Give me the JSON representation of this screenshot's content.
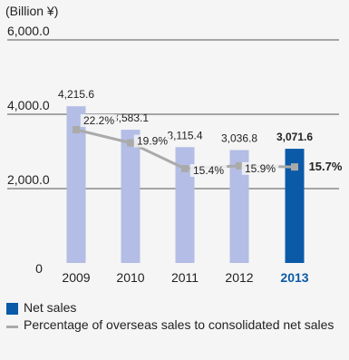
{
  "chart_data": {
    "type": "bar",
    "unit_label": "(Billion ¥)",
    "categories": [
      "2009",
      "2010",
      "2011",
      "2012",
      "2013"
    ],
    "highlight_category": "2013",
    "y_ticks": [
      "6,000.0",
      "4,000.0",
      "2,000.0",
      "0"
    ],
    "ylim": [
      0,
      6000
    ],
    "series": [
      {
        "name": "Net sales",
        "type": "bar",
        "values": [
          4215.6,
          3583.1,
          3115.4,
          3036.8,
          3071.6
        ],
        "labels": [
          "4,215.6",
          "3,583.1",
          "3,115.4",
          "3,036.8",
          "3,071.6"
        ]
      },
      {
        "name": "Percentage of overseas sales to consolidated net sales",
        "type": "line",
        "values": [
          22.2,
          19.9,
          15.4,
          15.9,
          15.7
        ],
        "labels": [
          "22.2%",
          "19.9%",
          "15.4%",
          "15.9%",
          "15.7%"
        ]
      }
    ],
    "colors": {
      "bar": "#b3bde5",
      "bar_highlight": "#0b5aa8",
      "line": "#aaaaaa",
      "highlight_text": "#0b5aa8"
    }
  }
}
